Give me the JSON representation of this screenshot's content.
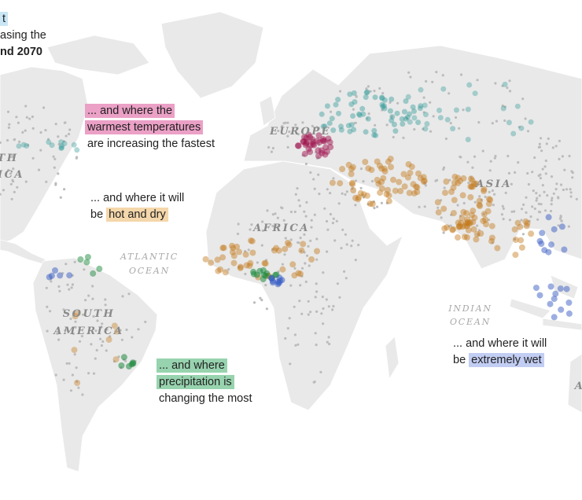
{
  "intro": {
    "lines": [
      "t",
      "asing the",
      "nd 2070"
    ]
  },
  "annotations": {
    "warmest": {
      "lines": [
        "... and where the",
        "warmest temperatures",
        "are increasing the fastest"
      ]
    },
    "hot_dry": {
      "lead": "... and where it will",
      "be": "be",
      "highlight": "hot and dry"
    },
    "precipitation": {
      "lines": [
        "... and where",
        "precipitation is",
        "changing the most"
      ]
    },
    "wet": {
      "lead": "... and where it will",
      "be": "be",
      "highlight": "extremely wet"
    }
  },
  "labels": {
    "north_america": [
      "TH",
      "ICA"
    ],
    "europe": "EUROPE",
    "asia": "ASIA",
    "africa": "AFRICA",
    "atlantic": [
      "ATLANTIC",
      "OCEAN"
    ],
    "south_america": [
      "SOUTH",
      "AMERICA"
    ],
    "indian": [
      "INDIAN",
      "OCEAN"
    ],
    "australia": "A"
  }
}
